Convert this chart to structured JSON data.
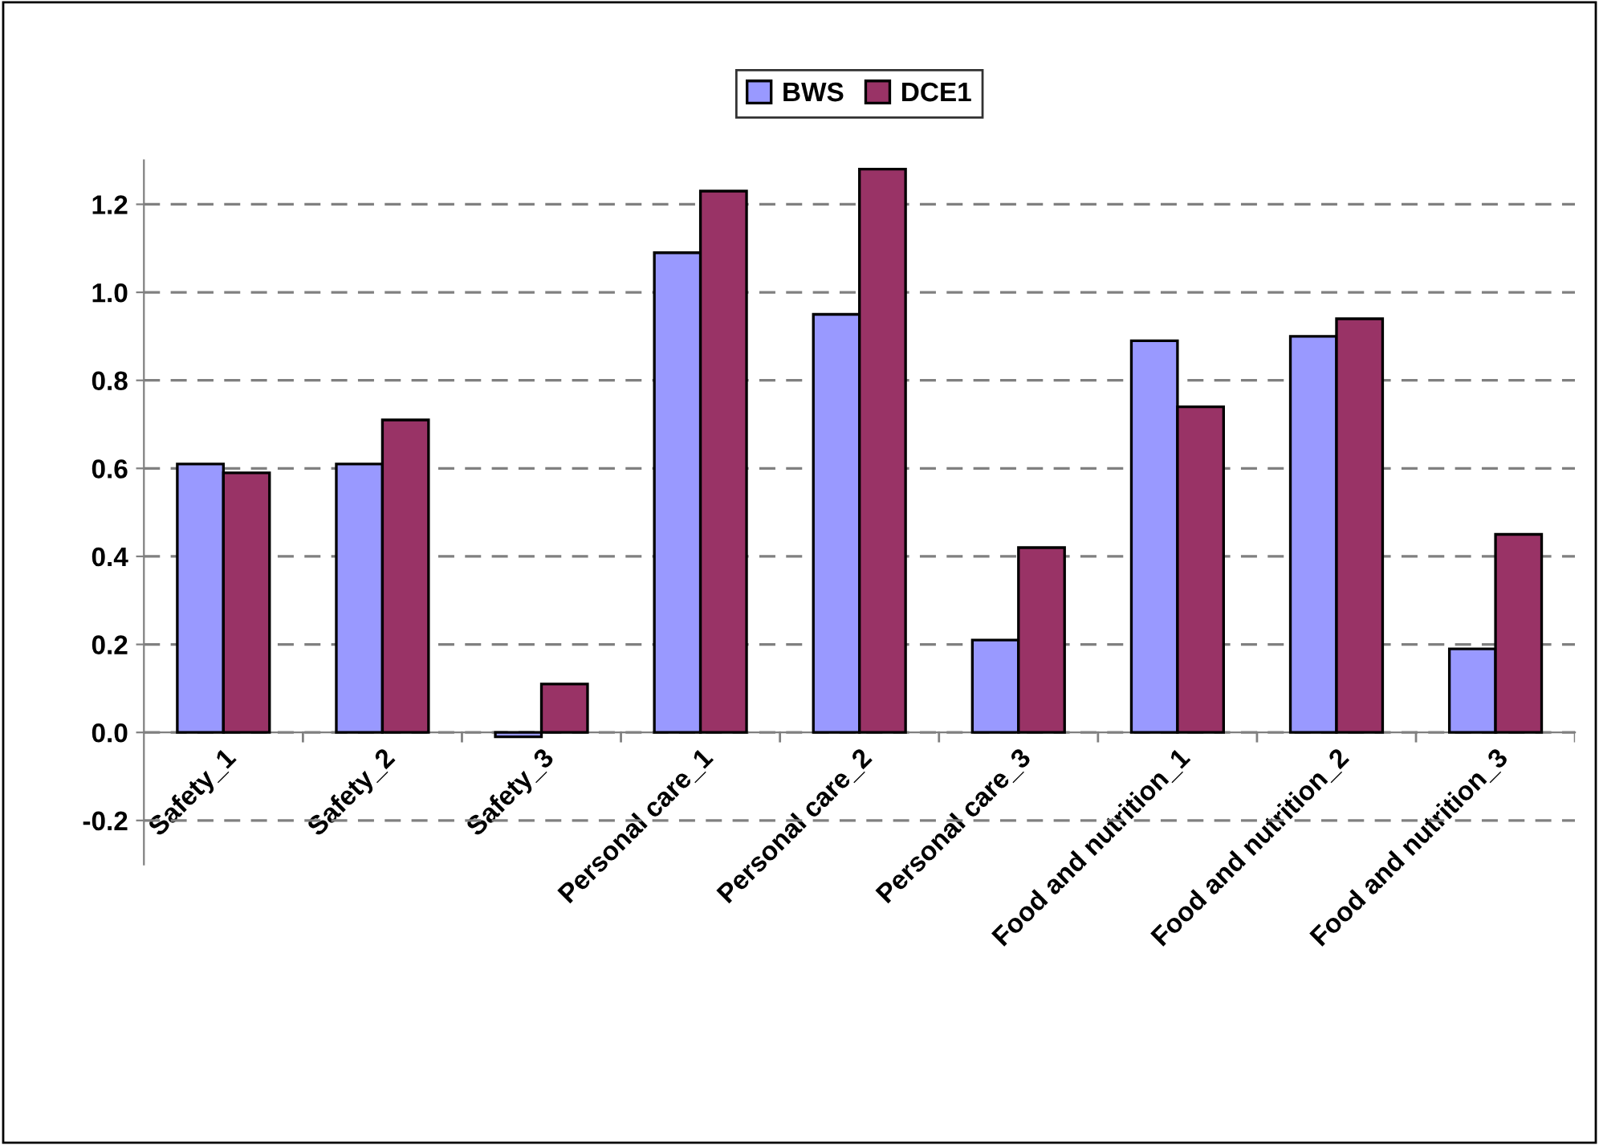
{
  "chart_data": {
    "type": "bar",
    "categories": [
      "Safety_1",
      "Safety_2",
      "Safety_3",
      "Personal care_1",
      "Personal care_2",
      "Personal care_3",
      "Food and nutrition_1",
      "Food and nutrition_2",
      "Food and nutrition_3"
    ],
    "series": [
      {
        "name": "BWS",
        "color": "#9999ff",
        "values": [
          0.61,
          0.61,
          -0.01,
          1.09,
          0.95,
          0.21,
          0.89,
          0.9,
          0.19
        ]
      },
      {
        "name": "DCE1",
        "color": "#993366",
        "values": [
          0.59,
          0.71,
          0.11,
          1.23,
          1.28,
          0.42,
          0.74,
          0.94,
          0.45
        ]
      }
    ],
    "ylim": [
      -0.3,
      1.3
    ],
    "yticks": [
      {
        "value": -0.2,
        "label": "-0.2"
      },
      {
        "value": 0,
        "label": "0.0"
      },
      {
        "value": 0.2,
        "label": "0.2"
      },
      {
        "value": 0.4,
        "label": "0.4"
      },
      {
        "value": 0.6,
        "label": "0.6"
      },
      {
        "value": 0.8,
        "label": "0.8"
      },
      {
        "value": 1.0,
        "label": "1.0"
      },
      {
        "value": 1.2,
        "label": "1.2"
      }
    ],
    "grid": "y",
    "legend": "top"
  }
}
